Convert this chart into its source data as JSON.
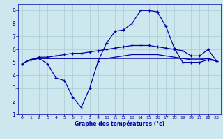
{
  "xlabel": "Graphe des températures (°c)",
  "bg_color": "#cce8ee",
  "grid_color": "#aaccd4",
  "line_color": "#0000aa",
  "xlim": [
    -0.5,
    23.5
  ],
  "ylim": [
    1,
    9.5
  ],
  "xticks": [
    0,
    1,
    2,
    3,
    4,
    5,
    6,
    7,
    8,
    9,
    10,
    11,
    12,
    13,
    14,
    15,
    16,
    17,
    18,
    19,
    20,
    21,
    22,
    23
  ],
  "yticks": [
    1,
    2,
    3,
    4,
    5,
    6,
    7,
    8,
    9
  ],
  "line_flat": {
    "x": [
      0,
      1,
      2,
      3,
      4,
      5,
      6,
      7,
      8,
      9,
      10,
      11,
      12,
      13,
      14,
      15,
      16,
      17,
      18,
      19,
      20,
      21,
      22,
      23
    ],
    "y": [
      4.9,
      5.2,
      5.3,
      5.3,
      5.3,
      5.3,
      5.3,
      5.3,
      5.3,
      5.3,
      5.3,
      5.3,
      5.3,
      5.3,
      5.3,
      5.3,
      5.3,
      5.3,
      5.3,
      5.3,
      5.3,
      5.3,
      5.3,
      5.1
    ]
  },
  "line_rise": {
    "x": [
      0,
      1,
      2,
      3,
      4,
      5,
      6,
      7,
      8,
      9,
      10,
      11,
      12,
      13,
      14,
      15,
      16,
      17,
      18,
      19,
      20,
      21,
      22,
      23
    ],
    "y": [
      4.9,
      5.2,
      5.4,
      5.4,
      5.5,
      5.6,
      5.7,
      5.7,
      5.8,
      5.9,
      6.0,
      6.1,
      6.2,
      6.3,
      6.3,
      6.3,
      6.2,
      6.1,
      6.0,
      5.9,
      5.5,
      5.5,
      6.0,
      5.1
    ]
  },
  "line_mid": {
    "x": [
      0,
      1,
      2,
      3,
      4,
      5,
      6,
      7,
      8,
      9,
      10,
      11,
      12,
      13,
      14,
      15,
      16,
      17,
      18,
      19,
      20,
      21,
      22,
      23
    ],
    "y": [
      4.9,
      5.2,
      5.3,
      5.3,
      5.3,
      5.3,
      5.3,
      5.3,
      5.3,
      5.3,
      5.3,
      5.4,
      5.5,
      5.6,
      5.6,
      5.6,
      5.6,
      5.5,
      5.4,
      5.3,
      5.2,
      5.2,
      5.3,
      5.1
    ]
  },
  "line_wave": {
    "x": [
      0,
      1,
      2,
      3,
      4,
      5,
      6,
      7,
      8,
      9,
      10,
      11,
      12,
      13,
      14,
      15,
      16,
      17,
      18,
      19,
      20,
      21,
      22,
      23
    ],
    "y": [
      4.9,
      5.2,
      5.3,
      4.9,
      3.8,
      3.6,
      2.3,
      1.5,
      3.0,
      5.1,
      6.5,
      7.4,
      7.5,
      8.0,
      9.0,
      9.0,
      8.9,
      7.8,
      6.1,
      5.0,
      5.0,
      5.0,
      5.2,
      5.1
    ]
  }
}
